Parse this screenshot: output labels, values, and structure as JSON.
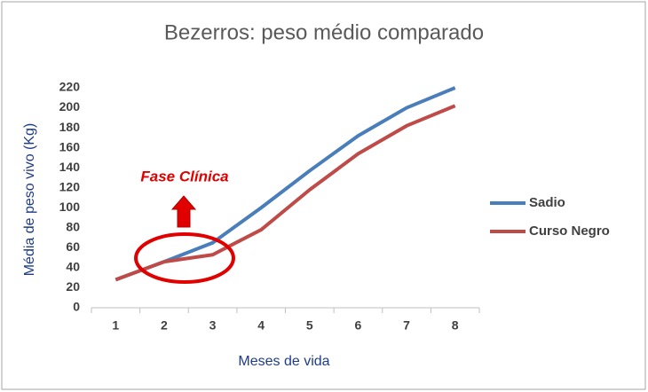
{
  "chart_data": {
    "type": "line",
    "title": "Bezerros: peso médio comparado",
    "x_label": "Meses de vida",
    "y_label": "Média de peso vivo  (Kg)",
    "annotation": "Fase Clínica",
    "categories": [
      "1",
      "2",
      "3",
      "4",
      "5",
      "6",
      "7",
      "8"
    ],
    "series": [
      {
        "name": "Sadio",
        "color": "#4a7ebb",
        "values": [
          28,
          46,
          65,
          100,
          137,
          172,
          200,
          220
        ]
      },
      {
        "name": "Curso Negro",
        "color": "#be4b48",
        "values": [
          28,
          46,
          53,
          78,
          118,
          154,
          182,
          202
        ]
      }
    ],
    "ylim": [
      0,
      220
    ],
    "yticks": [
      0,
      20,
      40,
      60,
      80,
      100,
      120,
      140,
      160,
      180,
      200,
      220
    ],
    "grid": false,
    "legend": "right"
  }
}
